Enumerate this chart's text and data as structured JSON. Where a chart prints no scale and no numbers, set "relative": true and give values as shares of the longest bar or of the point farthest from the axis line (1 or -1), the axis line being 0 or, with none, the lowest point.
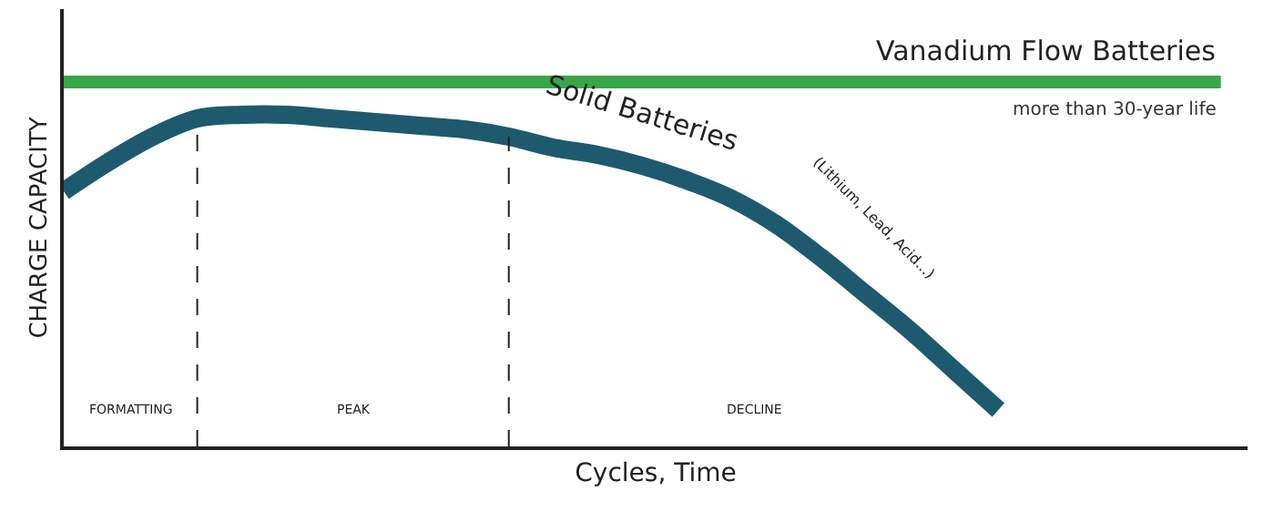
{
  "chart_data": {
    "type": "line",
    "relative": true,
    "xlabel": "Cycles, Time",
    "ylabel": "CHARGE CAPACITY",
    "categories": [
      null,
      null,
      null,
      null,
      null,
      null,
      null,
      null,
      null,
      null,
      null,
      null,
      null,
      null,
      null,
      null,
      null,
      null,
      null,
      null,
      null,
      null,
      null,
      null,
      null,
      null,
      null
    ],
    "series": [
      {
        "name": "Vanadium Flow Batteries",
        "color": "#3aa64a",
        "values": [
          1,
          1,
          1,
          1,
          1,
          1,
          1,
          1,
          1,
          1,
          1,
          1,
          1,
          1,
          1,
          1,
          1,
          1,
          1,
          1,
          1,
          1,
          1,
          1,
          1,
          1,
          1
        ]
      },
      {
        "name": "Solid Batteries",
        "color": "#1d5a6e",
        "values": [
          0.7,
          0.78,
          0.85,
          0.9,
          0.91,
          0.91,
          0.9,
          0.89,
          0.88,
          0.87,
          0.85,
          0.82,
          0.8,
          0.77,
          0.73,
          0.68,
          0.61,
          0.52,
          0.42,
          0.32,
          0.21,
          0.1,
          null,
          null,
          null,
          null,
          null
        ]
      }
    ],
    "annotations": [
      "more than 30-year life",
      "(Lithium, Lead, Acid...)",
      "FORMATTING",
      "PEAK",
      "DECLINE"
    ],
    "legend": false,
    "marker": "none",
    "line_style": "solid"
  }
}
